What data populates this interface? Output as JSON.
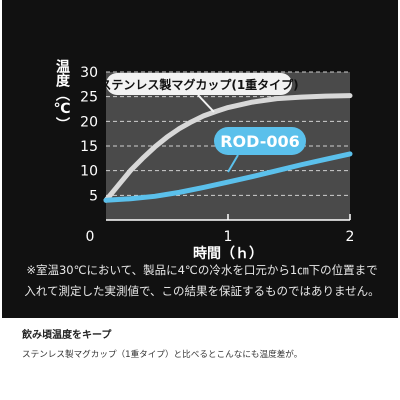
{
  "chart_data": {
    "type": "line",
    "xlabel": "時間（ｈ）",
    "ylabel": "温度（℃）",
    "xlim": [
      0,
      2
    ],
    "ylim": [
      0,
      30
    ],
    "x_ticks": [
      "0",
      "1",
      "2"
    ],
    "y_ticks": [
      "5",
      "10",
      "15",
      "20",
      "25",
      "30"
    ],
    "grid": true,
    "series": [
      {
        "name": "ステンレス製マグカップ(1重タイプ)",
        "color": "#d8d8d8",
        "x": [
          0,
          0.1,
          0.2,
          0.3,
          0.4,
          0.5,
          0.6,
          0.7,
          0.8,
          0.9,
          1.0,
          1.2,
          1.4,
          1.6,
          1.8,
          2.0
        ],
        "y": [
          4,
          7,
          10,
          12.5,
          14.8,
          16.8,
          18.5,
          19.9,
          21.1,
          22.0,
          22.8,
          23.9,
          24.6,
          24.9,
          25.1,
          25.2
        ]
      },
      {
        "name": "ROD-006",
        "color": "#5bc0eb",
        "x": [
          0,
          0.2,
          0.4,
          0.6,
          0.8,
          1.0,
          1.2,
          1.4,
          1.6,
          1.8,
          2.0
        ],
        "y": [
          4,
          4.3,
          4.8,
          5.6,
          6.6,
          7.7,
          8.8,
          10.0,
          11.2,
          12.3,
          13.4
        ]
      }
    ]
  },
  "note": {
    "line1": "※室温30℃において、製品に4℃の冷水を口元から1㎝下の位置まで",
    "line2": "入れて測定した実測値で、この結果を保証するものではありません。"
  },
  "caption": {
    "title": "飲み頃温度をキープ",
    "body": "ステンレス製マグカップ（1重タイプ）と比べるとこんなにも温度差が。"
  }
}
